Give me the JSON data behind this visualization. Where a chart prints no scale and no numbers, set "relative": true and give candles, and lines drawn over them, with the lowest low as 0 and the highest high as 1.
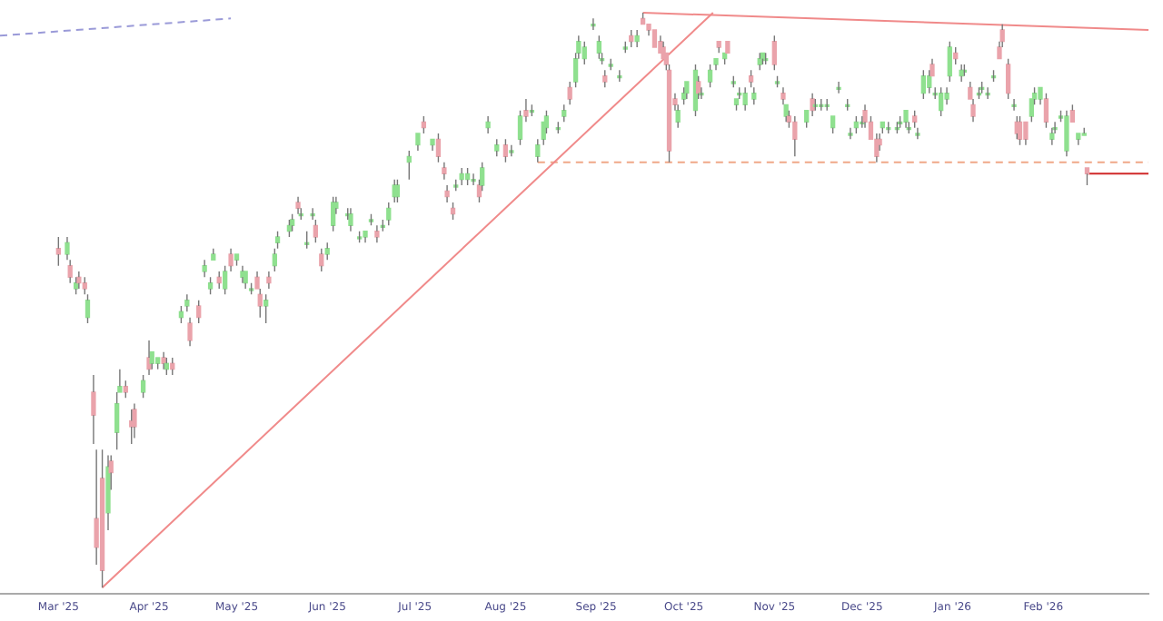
{
  "chart_data": {
    "type": "candlestick",
    "relative": true,
    "grid": false,
    "legend": false,
    "xlim": [
      "2025-02-09",
      "2026-03-09"
    ],
    "xticks": [
      {
        "value": "2025-03-01",
        "label": "Mar '25"
      },
      {
        "value": "2025-04-01",
        "label": "Apr '25"
      },
      {
        "value": "2025-05-01",
        "label": "May '25"
      },
      {
        "value": "2025-06-01",
        "label": "Jun '25"
      },
      {
        "value": "2025-07-01",
        "label": "Jul '25"
      },
      {
        "value": "2025-08-01",
        "label": "Aug '25"
      },
      {
        "value": "2025-09-01",
        "label": "Sep '25"
      },
      {
        "value": "2025-10-01",
        "label": "Oct '25"
      },
      {
        "value": "2025-11-01",
        "label": "Nov '25"
      },
      {
        "value": "2025-12-01",
        "label": "Dec '25"
      },
      {
        "value": "2026-01-01",
        "label": "Jan '26"
      },
      {
        "value": "2026-02-01",
        "label": "Feb '26"
      }
    ],
    "x": [
      "2025-03-01",
      "2025-03-04",
      "2025-03-05",
      "2025-03-07",
      "2025-03-08",
      "2025-03-10",
      "2025-03-11",
      "2025-03-13",
      "2025-03-14",
      "2025-03-16",
      "2025-03-18",
      "2025-03-19",
      "2025-03-21",
      "2025-03-22",
      "2025-03-24",
      "2025-03-26",
      "2025-03-27",
      "2025-03-30",
      "2025-04-01",
      "2025-04-02",
      "2025-04-04",
      "2025-04-06",
      "2025-04-07",
      "2025-04-09",
      "2025-04-12",
      "2025-04-14",
      "2025-04-15",
      "2025-04-18",
      "2025-04-20",
      "2025-04-22",
      "2025-04-23",
      "2025-04-25",
      "2025-04-27",
      "2025-04-29",
      "2025-05-01",
      "2025-05-03",
      "2025-05-04",
      "2025-05-06",
      "2025-05-08",
      "2025-05-09",
      "2025-05-11",
      "2025-05-12",
      "2025-05-14",
      "2025-05-15",
      "2025-05-19",
      "2025-05-20",
      "2025-05-22",
      "2025-05-23",
      "2025-05-25",
      "2025-05-27",
      "2025-05-28",
      "2025-05-30",
      "2025-06-01",
      "2025-06-03",
      "2025-06-04",
      "2025-06-08",
      "2025-06-09",
      "2025-06-12",
      "2025-06-14",
      "2025-06-16",
      "2025-06-18",
      "2025-06-20",
      "2025-06-22",
      "2025-06-24",
      "2025-06-25",
      "2025-06-29",
      "2025-07-02",
      "2025-07-04",
      "2025-07-07",
      "2025-07-09",
      "2025-07-11",
      "2025-07-12",
      "2025-07-14",
      "2025-07-15",
      "2025-07-17",
      "2025-07-19",
      "2025-07-21",
      "2025-07-23",
      "2025-07-24",
      "2025-07-26",
      "2025-07-29",
      "2025-08-01",
      "2025-08-03",
      "2025-08-06",
      "2025-08-08",
      "2025-08-10",
      "2025-08-12",
      "2025-08-14",
      "2025-08-15",
      "2025-08-19",
      "2025-08-21",
      "2025-08-23",
      "2025-08-25",
      "2025-08-26",
      "2025-08-28",
      "2025-08-31",
      "2025-09-02",
      "2025-09-03",
      "2025-09-04",
      "2025-09-06",
      "2025-09-09",
      "2025-09-11",
      "2025-09-13",
      "2025-09-15",
      "2025-09-17",
      "2025-09-19",
      "2025-09-21",
      "2025-09-23",
      "2025-09-24",
      "2025-09-25",
      "2025-09-26",
      "2025-09-28",
      "2025-09-29",
      "2025-10-01",
      "2025-10-02",
      "2025-10-05",
      "2025-10-06",
      "2025-10-07",
      "2025-10-10",
      "2025-10-12",
      "2025-10-13",
      "2025-10-15",
      "2025-10-16",
      "2025-10-18",
      "2025-10-19",
      "2025-10-20",
      "2025-10-22",
      "2025-10-24",
      "2025-10-25",
      "2025-10-27",
      "2025-10-28",
      "2025-10-29",
      "2025-11-01",
      "2025-11-02",
      "2025-11-04",
      "2025-11-05",
      "2025-11-06",
      "2025-11-08",
      "2025-11-12",
      "2025-11-14",
      "2025-11-15",
      "2025-11-17",
      "2025-11-19",
      "2025-11-21",
      "2025-11-23",
      "2025-11-26",
      "2025-11-27",
      "2025-11-29",
      "2025-12-01",
      "2025-12-02",
      "2025-12-04",
      "2025-12-06",
      "2025-12-07",
      "2025-12-08",
      "2025-12-10",
      "2025-12-13",
      "2025-12-14",
      "2025-12-16",
      "2025-12-17",
      "2025-12-19",
      "2025-12-20",
      "2025-12-22",
      "2025-12-24",
      "2025-12-25",
      "2025-12-26",
      "2025-12-28",
      "2025-12-30",
      "2025-12-31",
      "2026-01-02",
      "2026-01-04",
      "2026-01-05",
      "2026-01-07",
      "2026-01-08",
      "2026-01-10",
      "2026-01-11",
      "2026-01-13",
      "2026-01-15",
      "2026-01-17",
      "2026-01-18",
      "2026-01-20",
      "2026-01-22",
      "2026-01-23",
      "2026-01-24",
      "2026-01-26",
      "2026-01-28",
      "2026-01-29",
      "2026-01-31",
      "2026-02-02",
      "2026-02-04",
      "2026-02-05",
      "2026-02-07",
      "2026-02-09",
      "2026-02-11",
      "2026-02-13",
      "2026-02-15",
      "2026-02-16"
    ],
    "ohlc": [
      [
        0.59,
        0.61,
        0.56,
        0.58
      ],
      [
        0.58,
        0.61,
        0.57,
        0.6
      ],
      [
        0.56,
        0.57,
        0.53,
        0.54
      ],
      [
        0.52,
        0.54,
        0.51,
        0.53
      ],
      [
        0.54,
        0.55,
        0.52,
        0.53
      ],
      [
        0.53,
        0.54,
        0.51,
        0.52
      ],
      [
        0.47,
        0.51,
        0.46,
        0.5
      ],
      [
        0.34,
        0.37,
        0.25,
        0.3
      ],
      [
        0.12,
        0.24,
        0.04,
        0.07
      ],
      [
        0.19,
        0.24,
        0,
        0.03
      ],
      [
        0.13,
        0.23,
        0.1,
        0.21
      ],
      [
        0.22,
        0.23,
        0.17,
        0.2
      ],
      [
        0.27,
        0.34,
        0.24,
        0.32
      ],
      [
        0.34,
        0.38,
        0.34,
        0.35
      ],
      [
        0.35,
        0.36,
        0.33,
        0.34
      ],
      [
        0.29,
        0.31,
        0.25,
        0.28
      ],
      [
        0.31,
        0.32,
        0.26,
        0.28
      ],
      [
        0.34,
        0.37,
        0.33,
        0.36
      ],
      [
        0.4,
        0.43,
        0.37,
        0.38
      ],
      [
        0.39,
        0.41,
        0.38,
        0.41
      ],
      [
        0.39,
        0.4,
        0.38,
        0.4
      ],
      [
        0.4,
        0.41,
        0.38,
        0.39
      ],
      [
        0.38,
        0.4,
        0.37,
        0.39
      ],
      [
        0.39,
        0.4,
        0.37,
        0.38
      ],
      [
        0.47,
        0.49,
        0.46,
        0.48
      ],
      [
        0.49,
        0.51,
        0.48,
        0.5
      ],
      [
        0.46,
        0.47,
        0.42,
        0.43
      ],
      [
        0.49,
        0.5,
        0.46,
        0.47
      ],
      [
        0.55,
        0.57,
        0.54,
        0.56
      ],
      [
        0.52,
        0.54,
        0.51,
        0.53
      ],
      [
        0.57,
        0.59,
        0.57,
        0.58
      ],
      [
        0.54,
        0.55,
        0.52,
        0.53
      ],
      [
        0.52,
        0.56,
        0.51,
        0.55
      ],
      [
        0.58,
        0.59,
        0.55,
        0.56
      ],
      [
        0.57,
        0.58,
        0.56,
        0.58
      ],
      [
        0.54,
        0.56,
        0.53,
        0.55
      ],
      [
        0.53,
        0.55,
        0.52,
        0.55
      ],
      [
        0.52,
        0.53,
        0.51,
        0.52
      ],
      [
        0.54,
        0.55,
        0.52,
        0.52
      ],
      [
        0.51,
        0.52,
        0.47,
        0.49
      ],
      [
        0.49,
        0.51,
        0.46,
        0.5
      ],
      [
        0.54,
        0.55,
        0.52,
        0.53
      ],
      [
        0.56,
        0.59,
        0.55,
        0.58
      ],
      [
        0.6,
        0.62,
        0.59,
        0.61
      ],
      [
        0.62,
        0.64,
        0.61,
        0.63
      ],
      [
        0.63,
        0.65,
        0.62,
        0.64
      ],
      [
        0.67,
        0.68,
        0.65,
        0.66
      ],
      [
        0.65,
        0.66,
        0.64,
        0.65
      ],
      [
        0.6,
        0.62,
        0.59,
        0.6
      ],
      [
        0.65,
        0.66,
        0.64,
        0.65
      ],
      [
        0.63,
        0.64,
        0.6,
        0.61
      ],
      [
        0.58,
        0.59,
        0.55,
        0.56
      ],
      [
        0.58,
        0.6,
        0.57,
        0.59
      ],
      [
        0.63,
        0.68,
        0.62,
        0.67
      ],
      [
        0.66,
        0.68,
        0.65,
        0.67
      ],
      [
        0.65,
        0.66,
        0.64,
        0.65
      ],
      [
        0.63,
        0.66,
        0.62,
        0.65
      ],
      [
        0.61,
        0.62,
        0.6,
        0.61
      ],
      [
        0.61,
        0.62,
        0.6,
        0.62
      ],
      [
        0.64,
        0.65,
        0.63,
        0.64
      ],
      [
        0.62,
        0.63,
        0.6,
        0.61
      ],
      [
        0.63,
        0.64,
        0.62,
        0.63
      ],
      [
        0.64,
        0.67,
        0.63,
        0.66
      ],
      [
        0.68,
        0.71,
        0.67,
        0.7
      ],
      [
        0.68,
        0.71,
        0.67,
        0.7
      ],
      [
        0.74,
        0.76,
        0.71,
        0.75
      ],
      [
        0.77,
        0.79,
        0.76,
        0.79
      ],
      [
        0.81,
        0.82,
        0.79,
        0.8
      ],
      [
        0.77,
        0.78,
        0.76,
        0.78
      ],
      [
        0.78,
        0.79,
        0.74,
        0.75
      ],
      [
        0.73,
        0.74,
        0.71,
        0.72
      ],
      [
        0.69,
        0.7,
        0.67,
        0.68
      ],
      [
        0.66,
        0.67,
        0.64,
        0.65
      ],
      [
        0.7,
        0.71,
        0.69,
        0.7
      ],
      [
        0.71,
        0.73,
        0.7,
        0.72
      ],
      [
        0.71,
        0.73,
        0.7,
        0.72
      ],
      [
        0.71,
        0.72,
        0.7,
        0.71
      ],
      [
        0.7,
        0.71,
        0.67,
        0.68
      ],
      [
        0.7,
        0.74,
        0.69,
        0.73
      ],
      [
        0.8,
        0.82,
        0.79,
        0.81
      ],
      [
        0.76,
        0.78,
        0.75,
        0.77
      ],
      [
        0.77,
        0.78,
        0.74,
        0.75
      ],
      [
        0.76,
        0.77,
        0.75,
        0.76
      ],
      [
        0.78,
        0.83,
        0.77,
        0.82
      ],
      [
        0.83,
        0.85,
        0.81,
        0.82
      ],
      [
        0.83,
        0.84,
        0.82,
        0.83
      ],
      [
        0.75,
        0.78,
        0.74,
        0.77
      ],
      [
        0.78,
        0.81,
        0.77,
        0.81
      ],
      [
        0.8,
        0.83,
        0.79,
        0.82
      ],
      [
        0.8,
        0.81,
        0.79,
        0.8
      ],
      [
        0.82,
        0.84,
        0.81,
        0.83
      ],
      [
        0.87,
        0.88,
        0.84,
        0.85
      ],
      [
        0.88,
        0.93,
        0.87,
        0.92
      ],
      [
        0.93,
        0.96,
        0.92,
        0.95
      ],
      [
        0.92,
        0.95,
        0.91,
        0.94
      ],
      [
        0.98,
        0.99,
        0.97,
        0.98
      ],
      [
        0.93,
        0.96,
        0.92,
        0.95
      ],
      [
        0.92,
        0.93,
        0.91,
        0.92
      ],
      [
        0.89,
        0.9,
        0.87,
        0.88
      ],
      [
        0.91,
        0.92,
        0.9,
        0.91
      ],
      [
        0.89,
        0.9,
        0.88,
        0.89
      ],
      [
        0.94,
        0.95,
        0.93,
        0.94
      ],
      [
        0.96,
        0.97,
        0.94,
        0.95
      ],
      [
        0.95,
        0.97,
        0.94,
        0.96
      ],
      [
        0.99,
        1,
        0.98,
        0.98
      ],
      [
        0.98,
        0.98,
        0.96,
        0.97
      ],
      [
        0.97,
        0.97,
        0.94,
        0.94
      ],
      [
        0.95,
        0.96,
        0.93,
        0.93
      ],
      [
        0.94,
        0.95,
        0.92,
        0.92
      ],
      [
        0.93,
        0.93,
        0.9,
        0.91
      ],
      [
        0.9,
        0.91,
        0.74,
        0.76
      ],
      [
        0.85,
        0.86,
        0.83,
        0.84
      ],
      [
        0.81,
        0.84,
        0.8,
        0.83
      ],
      [
        0.85,
        0.87,
        0.84,
        0.86
      ],
      [
        0.86,
        0.88,
        0.85,
        0.88
      ],
      [
        0.83,
        0.91,
        0.82,
        0.9
      ],
      [
        0.88,
        0.89,
        0.85,
        0.86
      ],
      [
        0.86,
        0.87,
        0.85,
        0.86
      ],
      [
        0.88,
        0.91,
        0.87,
        0.9
      ],
      [
        0.91,
        0.92,
        0.9,
        0.92
      ],
      [
        0.95,
        0.95,
        0.93,
        0.94
      ],
      [
        0.92,
        0.93,
        0.91,
        0.93
      ],
      [
        0.95,
        0.95,
        0.93,
        0.93
      ],
      [
        0.88,
        0.89,
        0.87,
        0.88
      ],
      [
        0.84,
        0.85,
        0.83,
        0.85
      ],
      [
        0.86,
        0.87,
        0.85,
        0.86
      ],
      [
        0.84,
        0.87,
        0.83,
        0.86
      ],
      [
        0.89,
        0.9,
        0.87,
        0.88
      ],
      [
        0.85,
        0.87,
        0.84,
        0.86
      ],
      [
        0.91,
        0.93,
        0.9,
        0.92
      ],
      [
        0.92,
        0.93,
        0.91,
        0.93
      ],
      [
        0.92,
        0.93,
        0.91,
        0.92
      ],
      [
        0.95,
        0.96,
        0.9,
        0.91
      ],
      [
        0.88,
        0.89,
        0.87,
        0.88
      ],
      [
        0.86,
        0.87,
        0.84,
        0.85
      ],
      [
        0.82,
        0.84,
        0.81,
        0.84
      ],
      [
        0.82,
        0.83,
        0.8,
        0.81
      ],
      [
        0.81,
        0.82,
        0.75,
        0.78
      ],
      [
        0.81,
        0.83,
        0.8,
        0.83
      ],
      [
        0.85,
        0.86,
        0.82,
        0.83
      ],
      [
        0.84,
        0.85,
        0.83,
        0.84
      ],
      [
        0.84,
        0.85,
        0.83,
        0.84
      ],
      [
        0.84,
        0.85,
        0.83,
        0.84
      ],
      [
        0.8,
        0.82,
        0.79,
        0.82
      ],
      [
        0.87,
        0.88,
        0.86,
        0.87
      ],
      [
        0.84,
        0.85,
        0.83,
        0.84
      ],
      [
        0.79,
        0.8,
        0.78,
        0.79
      ],
      [
        0.8,
        0.82,
        0.79,
        0.81
      ],
      [
        0.81,
        0.82,
        0.8,
        0.81
      ],
      [
        0.83,
        0.84,
        0.8,
        0.81
      ],
      [
        0.81,
        0.82,
        0.78,
        0.78
      ],
      [
        0.78,
        0.79,
        0.74,
        0.75
      ],
      [
        0.78,
        0.79,
        0.76,
        0.77
      ],
      [
        0.8,
        0.81,
        0.79,
        0.81
      ],
      [
        0.8,
        0.81,
        0.79,
        0.8
      ],
      [
        0.8,
        0.81,
        0.79,
        0.8
      ],
      [
        0.81,
        0.82,
        0.8,
        0.81
      ],
      [
        0.81,
        0.83,
        0.8,
        0.83
      ],
      [
        0.8,
        0.81,
        0.79,
        0.8
      ],
      [
        0.82,
        0.83,
        0.8,
        0.81
      ],
      [
        0.79,
        0.8,
        0.78,
        0.79
      ],
      [
        0.86,
        0.9,
        0.85,
        0.89
      ],
      [
        0.87,
        0.9,
        0.86,
        0.89
      ],
      [
        0.91,
        0.92,
        0.89,
        0.89
      ],
      [
        0.86,
        0.87,
        0.85,
        0.86
      ],
      [
        0.83,
        0.87,
        0.82,
        0.86
      ],
      [
        0.85,
        0.87,
        0.84,
        0.86
      ],
      [
        0.89,
        0.95,
        0.88,
        0.94
      ],
      [
        0.93,
        0.94,
        0.91,
        0.92
      ],
      [
        0.89,
        0.91,
        0.88,
        0.9
      ],
      [
        0.9,
        0.91,
        0.89,
        0.9
      ],
      [
        0.87,
        0.88,
        0.85,
        0.85
      ],
      [
        0.84,
        0.85,
        0.81,
        0.82
      ],
      [
        0.86,
        0.87,
        0.85,
        0.86
      ],
      [
        0.87,
        0.88,
        0.86,
        0.87
      ],
      [
        0.86,
        0.87,
        0.85,
        0.86
      ],
      [
        0.89,
        0.9,
        0.88,
        0.89
      ],
      [
        0.94,
        0.95,
        0.92,
        0.92
      ],
      [
        0.97,
        0.98,
        0.94,
        0.95
      ],
      [
        0.91,
        0.92,
        0.85,
        0.86
      ],
      [
        0.84,
        0.85,
        0.83,
        0.84
      ],
      [
        0.81,
        0.82,
        0.78,
        0.79
      ],
      [
        0.81,
        0.82,
        0.77,
        0.78
      ],
      [
        0.81,
        0.81,
        0.77,
        0.78
      ],
      [
        0.82,
        0.85,
        0.81,
        0.85
      ],
      [
        0.85,
        0.87,
        0.84,
        0.86
      ],
      [
        0.85,
        0.87,
        0.84,
        0.87
      ],
      [
        0.85,
        0.86,
        0.8,
        0.81
      ],
      [
        0.78,
        0.8,
        0.77,
        0.79
      ],
      [
        0.8,
        0.81,
        0.79,
        0.8
      ],
      [
        0.82,
        0.83,
        0.81,
        0.82
      ],
      [
        0.76,
        0.83,
        0.75,
        0.82
      ],
      [
        0.83,
        0.84,
        0.81,
        0.81
      ],
      [
        0.78,
        0.79,
        0.77,
        0.79
      ],
      [
        0.79,
        0.8,
        0.79,
        0.79
      ],
      [
        0.73,
        0.73,
        0.7,
        0.72
      ]
    ],
    "colors": [
      "#eaa3ab",
      "#8fe08f",
      "#eaa3ab",
      "#8fe08f",
      "#eaa3ab",
      "#eaa3ab",
      "#8fe08f",
      "#eaa3ab",
      "#eaa3ab",
      "#eaa3ab",
      "#8fe08f",
      "#eaa3ab",
      "#8fe08f",
      "#8fe08f",
      "#eaa3ab",
      "#eaa3ab",
      "#eaa3ab",
      "#8fe08f",
      "#eaa3ab",
      "#8fe08f",
      "#8fe08f",
      "#eaa3ab",
      "#8fe08f",
      "#eaa3ab",
      "#8fe08f",
      "#8fe08f",
      "#eaa3ab",
      "#eaa3ab",
      "#8fe08f",
      "#8fe08f",
      "#8fe08f",
      "#eaa3ab",
      "#8fe08f",
      "#eaa3ab",
      "#8fe08f",
      "#8fe08f",
      "#8fe08f",
      "#8fe08f",
      "#eaa3ab",
      "#eaa3ab",
      "#8fe08f",
      "#eaa3ab",
      "#8fe08f",
      "#8fe08f",
      "#8fe08f",
      "#8fe08f",
      "#eaa3ab",
      "#8fe08f",
      "#8fe08f",
      "#8fe08f",
      "#eaa3ab",
      "#eaa3ab",
      "#8fe08f",
      "#8fe08f",
      "#8fe08f",
      "#8fe08f",
      "#8fe08f",
      "#8fe08f",
      "#8fe08f",
      "#8fe08f",
      "#eaa3ab",
      "#8fe08f",
      "#8fe08f",
      "#8fe08f",
      "#8fe08f",
      "#8fe08f",
      "#8fe08f",
      "#eaa3ab",
      "#8fe08f",
      "#eaa3ab",
      "#eaa3ab",
      "#eaa3ab",
      "#eaa3ab",
      "#8fe08f",
      "#8fe08f",
      "#8fe08f",
      "#8fe08f",
      "#eaa3ab",
      "#8fe08f",
      "#8fe08f",
      "#8fe08f",
      "#eaa3ab",
      "#8fe08f",
      "#8fe08f",
      "#eaa3ab",
      "#8fe08f",
      "#8fe08f",
      "#8fe08f",
      "#8fe08f",
      "#8fe08f",
      "#8fe08f",
      "#eaa3ab",
      "#8fe08f",
      "#8fe08f",
      "#8fe08f",
      "#8fe08f",
      "#8fe08f",
      "#8fe08f",
      "#eaa3ab",
      "#8fe08f",
      "#8fe08f",
      "#8fe08f",
      "#eaa3ab",
      "#8fe08f",
      "#eaa3ab",
      "#eaa3ab",
      "#eaa3ab",
      "#eaa3ab",
      "#eaa3ab",
      "#eaa3ab",
      "#eaa3ab",
      "#eaa3ab",
      "#8fe08f",
      "#8fe08f",
      "#8fe08f",
      "#8fe08f",
      "#eaa3ab",
      "#8fe08f",
      "#8fe08f",
      "#8fe08f",
      "#eaa3ab",
      "#8fe08f",
      "#eaa3ab",
      "#8fe08f",
      "#8fe08f",
      "#8fe08f",
      "#8fe08f",
      "#eaa3ab",
      "#8fe08f",
      "#8fe08f",
      "#8fe08f",
      "#8fe08f",
      "#eaa3ab",
      "#8fe08f",
      "#eaa3ab",
      "#8fe08f",
      "#eaa3ab",
      "#eaa3ab",
      "#8fe08f",
      "#eaa3ab",
      "#8fe08f",
      "#8fe08f",
      "#8fe08f",
      "#8fe08f",
      "#8fe08f",
      "#8fe08f",
      "#8fe08f",
      "#8fe08f",
      "#8fe08f",
      "#eaa3ab",
      "#eaa3ab",
      "#eaa3ab",
      "#eaa3ab",
      "#8fe08f",
      "#8fe08f",
      "#8fe08f",
      "#8fe08f",
      "#8fe08f",
      "#8fe08f",
      "#eaa3ab",
      "#8fe08f",
      "#8fe08f",
      "#8fe08f",
      "#eaa3ab",
      "#8fe08f",
      "#8fe08f",
      "#8fe08f",
      "#8fe08f",
      "#eaa3ab",
      "#8fe08f",
      "#8fe08f",
      "#eaa3ab",
      "#eaa3ab",
      "#8fe08f",
      "#8fe08f",
      "#8fe08f",
      "#8fe08f",
      "#eaa3ab",
      "#eaa3ab",
      "#eaa3ab",
      "#8fe08f",
      "#eaa3ab",
      "#eaa3ab",
      "#eaa3ab",
      "#8fe08f",
      "#8fe08f",
      "#8fe08f",
      "#eaa3ab",
      "#8fe08f",
      "#8fe08f",
      "#8fe08f",
      "#8fe08f",
      "#eaa3ab",
      "#8fe08f",
      "#8fe08f",
      "#eaa3ab"
    ],
    "series": [
      {
        "type": "line",
        "color": "#f08a8a",
        "line_style": "solid",
        "x": [
          "2025-03-16",
          "2025-10-11"
        ],
        "values": [
          0,
          1
        ]
      },
      {
        "type": "line",
        "color": "#f08a8a",
        "line_style": "solid",
        "x": [
          "2025-09-17",
          "2026-03-09"
        ],
        "values": [
          1,
          0.97
        ]
      },
      {
        "type": "line",
        "color": "#f0a888",
        "line_style": "dashed",
        "x": [
          "2025-08-12",
          "2026-03-09"
        ],
        "values": [
          0.74,
          0.74
        ]
      },
      {
        "type": "line",
        "color": "#d02828",
        "line_style": "solid",
        "x": [
          "2026-02-16",
          "2026-03-09"
        ],
        "values": [
          0.72,
          0.72
        ]
      },
      {
        "type": "line",
        "color": "#9a9ad8",
        "line_style": "dashed",
        "x": [
          "2025-02-09",
          "2025-04-29"
        ],
        "values": [
          0.96,
          0.99
        ]
      }
    ]
  }
}
